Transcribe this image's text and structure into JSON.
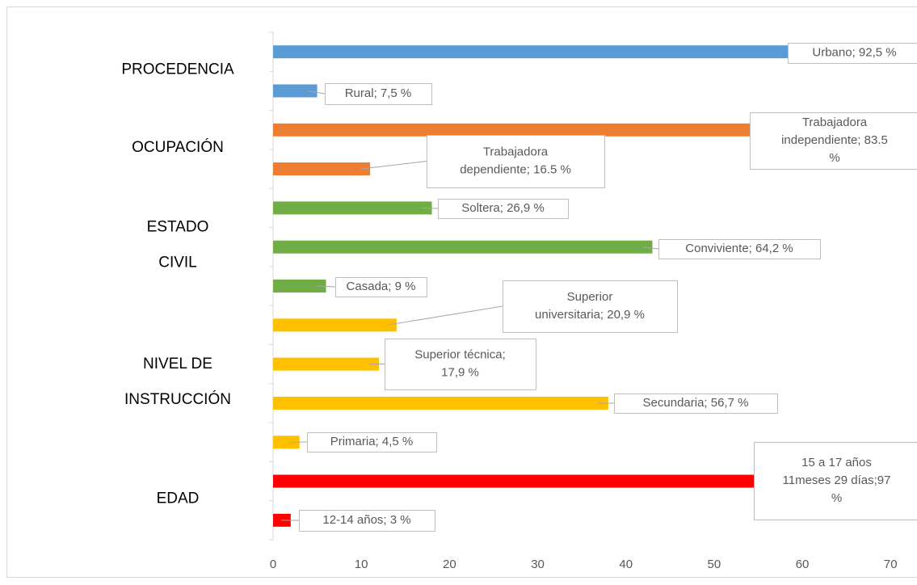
{
  "chart_data": {
    "type": "bar",
    "orientation": "horizontal",
    "xlim": [
      0,
      73
    ],
    "xticks": [
      0,
      10,
      20,
      30,
      40,
      50,
      60,
      70
    ],
    "series": [
      {
        "name": [
          "PROCEDENCIA"
        ],
        "color": "#5b9bd5",
        "values": [
          62,
          5
        ],
        "labels": [
          [
            "Urbano; 92,5 %"
          ],
          [
            "Rural; 7,5 %"
          ]
        ]
      },
      {
        "name": [
          "OCUPACIÓN"
        ],
        "color": "#ed7d31",
        "values": [
          56,
          11
        ],
        "labels": [
          [
            "Trabajadora",
            "independiente;  83.5",
            "%"
          ],
          [
            "Trabajadora",
            "dependiente;  16.5 %"
          ]
        ]
      },
      {
        "name": [
          "ESTADO",
          "CIVIL"
        ],
        "color": "#70ad47",
        "values": [
          18,
          43,
          6
        ],
        "labels": [
          [
            "Soltera;  26,9 %"
          ],
          [
            "Conviviente;  64,2 %"
          ],
          [
            "Casada;  9 %"
          ]
        ]
      },
      {
        "name": [
          "NIVEL DE",
          "INSTRUCCIÓN"
        ],
        "color": "#ffc000",
        "values": [
          14,
          12,
          38,
          3
        ],
        "labels": [
          [
            "Superior",
            "universitaria;  20,9 %"
          ],
          [
            "Superior  técnica;",
            "17,9 %"
          ],
          [
            "Secundaria;  56,7 %"
          ],
          [
            "Primaria;  4,5 %"
          ]
        ]
      },
      {
        "name": [
          "EDAD"
        ],
        "color": "#ff0000",
        "values": [
          65,
          2
        ],
        "labels": [
          [
            "15 a 17 años",
            "11meses 29 días;97",
            "%"
          ],
          [
            "12-14 años;  3 %"
          ]
        ]
      }
    ]
  }
}
